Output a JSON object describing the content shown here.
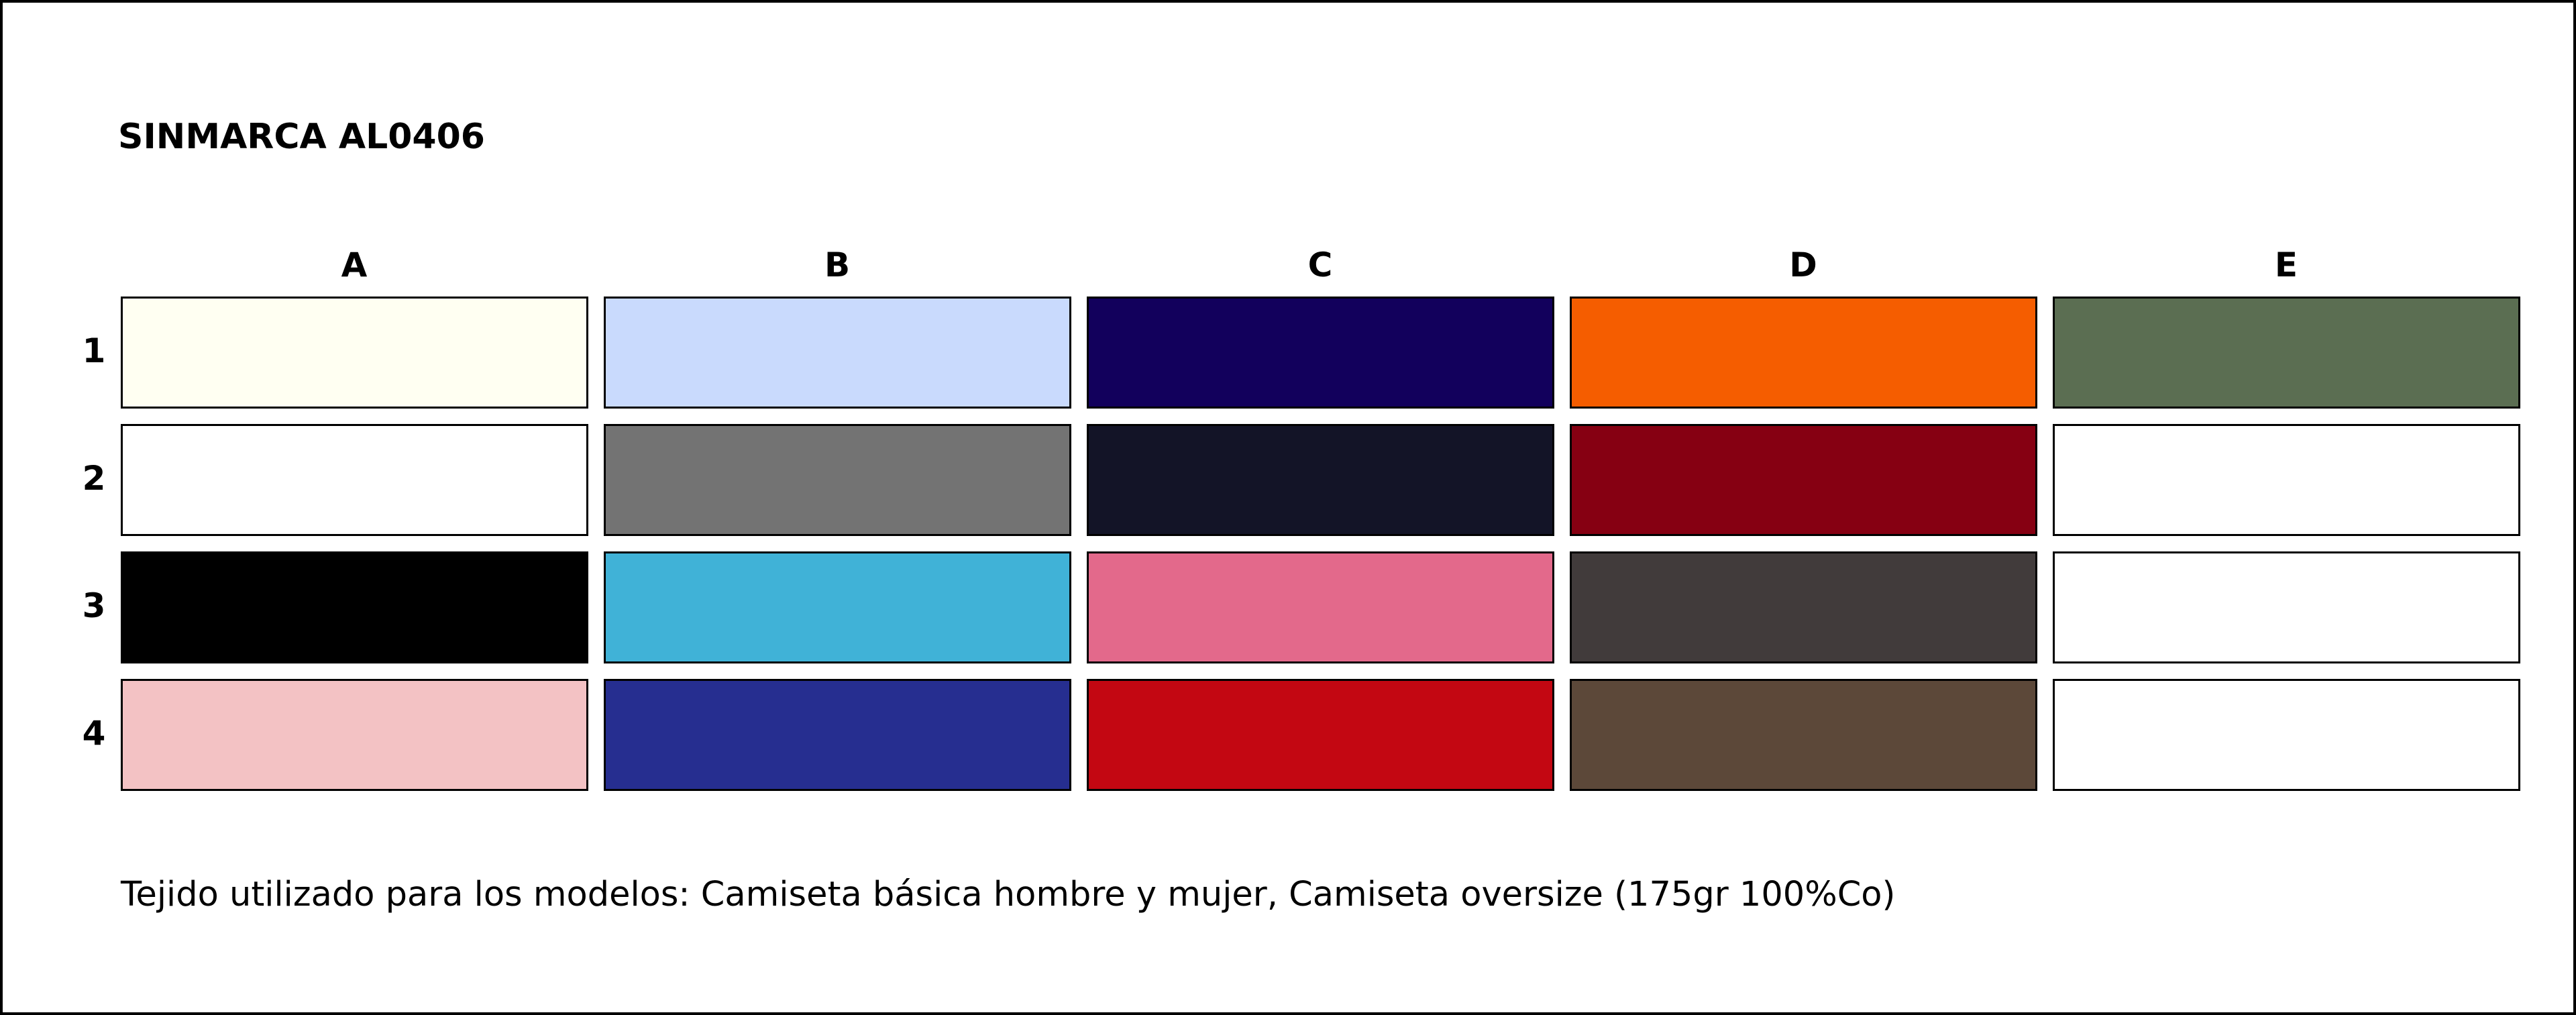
{
  "title": "SINMARCA AL0406",
  "columns": [
    "A",
    "B",
    "C",
    "D",
    "E"
  ],
  "rows": [
    {
      "label": "1",
      "colors": [
        "#fffff2",
        "#c9dafd",
        "#12005c",
        "#f55d00",
        "#5b6e52"
      ]
    },
    {
      "label": "2",
      "colors": [
        "#ffffff",
        "#737373",
        "#131427",
        "#860012",
        "#ffffff"
      ]
    },
    {
      "label": "3",
      "colors": [
        "#000000",
        "#40b2d7",
        "#e3698b",
        "#413b3b",
        "#ffffff"
      ]
    },
    {
      "label": "4",
      "colors": [
        "#f3c2c4",
        "#262e90",
        "#c30712",
        "#5c4839",
        "#ffffff"
      ]
    }
  ],
  "footnote": "Tejido utilizado para los modelos: Camiseta básica hombre y mujer, Camiseta oversize (175gr 100%Co)"
}
